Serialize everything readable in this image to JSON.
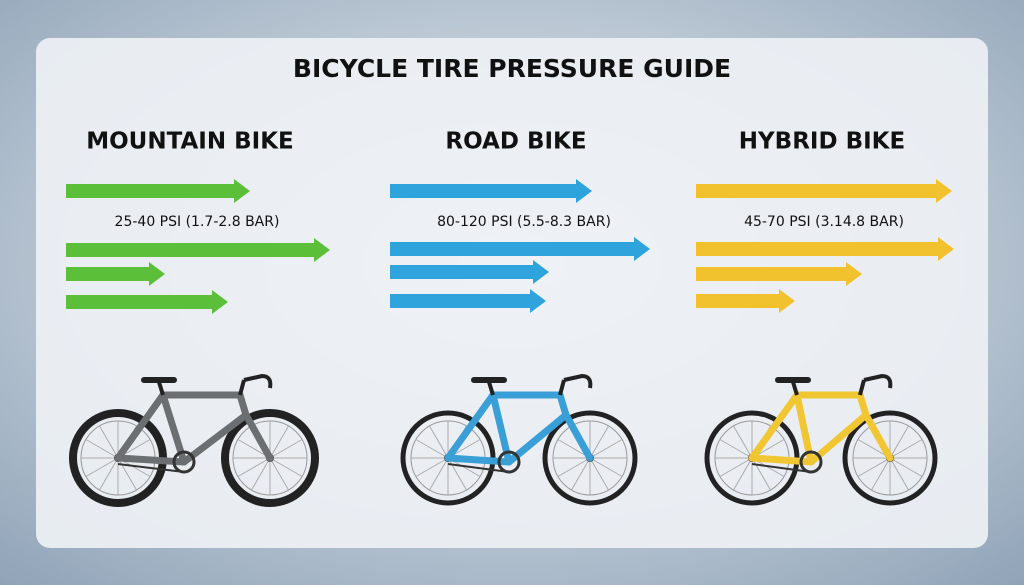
{
  "header": {
    "title": "BICYCLE TIRE PRESSURE GUIDE"
  },
  "columns": [
    {
      "name": "MOUNTAIN BIKE",
      "pressure": "25-40 PSI (1.7-2.8 BAR)",
      "color": "#5cbf3a",
      "frame_color": "#6b6f72"
    },
    {
      "name": "ROAD BIKE",
      "pressure": "80-120 PSI (5.5-8.3 BAR)",
      "color": "#2fa3dc",
      "frame_color": "#3a9fd6"
    },
    {
      "name": "HYBRID BIKE",
      "pressure": "45-70 PSI (3.14.8 BAR)",
      "color": "#f2c12e",
      "frame_color": "#f0c633"
    }
  ]
}
